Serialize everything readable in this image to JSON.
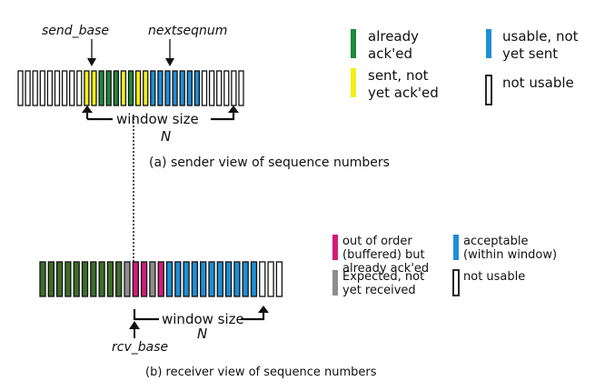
{
  "sender": {
    "send_base_label": "send_base",
    "nextseqnum_label": "nextseqnum",
    "window_size_label": "window size",
    "n_label": "N",
    "caption": "(a) sender view of sequence numbers",
    "slots": [
      "empty",
      "empty",
      "empty",
      "empty",
      "empty",
      "empty",
      "empty",
      "empty",
      "empty",
      "yellow",
      "yellow",
      "green",
      "green",
      "green",
      "yellow",
      "green",
      "yellow",
      "yellow",
      "blue",
      "blue",
      "blue",
      "blue",
      "blue",
      "blue",
      "blue",
      "empty",
      "empty",
      "empty",
      "empty",
      "empty",
      "empty"
    ]
  },
  "receiver": {
    "rcv_base_label": "rcv_base",
    "window_size_label": "window size",
    "n_label": "N",
    "caption": "(b) receiver view of sequence numbers",
    "slots": [
      "darkgreen",
      "darkgreen",
      "darkgreen",
      "darkgreen",
      "darkgreen",
      "darkgreen",
      "darkgreen",
      "darkgreen",
      "darkgreen",
      "darkgreen",
      "gray",
      "pink",
      "pink",
      "gray",
      "pink",
      "blue",
      "blue",
      "blue",
      "blue",
      "blue",
      "blue",
      "blue",
      "blue",
      "blue",
      "blue",
      "blue",
      "empty",
      "empty",
      "empty"
    ]
  },
  "sender_legend": [
    {
      "color": "green",
      "lines": [
        "already",
        "ack'ed"
      ]
    },
    {
      "color": "yellow",
      "lines": [
        "sent, not",
        "yet ack'ed"
      ]
    },
    {
      "color": "blue",
      "lines": [
        "usable, not",
        "yet sent"
      ]
    },
    {
      "color": "empty",
      "lines": [
        "not usable"
      ]
    }
  ],
  "receiver_legend": [
    {
      "color": "pink",
      "lines": [
        "out of order",
        "(buffered) but",
        "already ack'ed"
      ]
    },
    {
      "color": "gray",
      "lines": [
        "Expected, not",
        "yet received"
      ]
    },
    {
      "color": "blue",
      "lines": [
        "acceptable",
        "(within window)"
      ]
    },
    {
      "color": "empty",
      "lines": [
        "not usable"
      ]
    }
  ],
  "colors": {
    "green": "#1f8a3a",
    "yellow": "#f4ee1a",
    "blue": "#1e8fd6",
    "pink": "#d21c7a",
    "gray": "#8e8e8e",
    "darkgreen": "#3c6e2a",
    "empty": "#ffffff",
    "stroke": "#111111"
  }
}
